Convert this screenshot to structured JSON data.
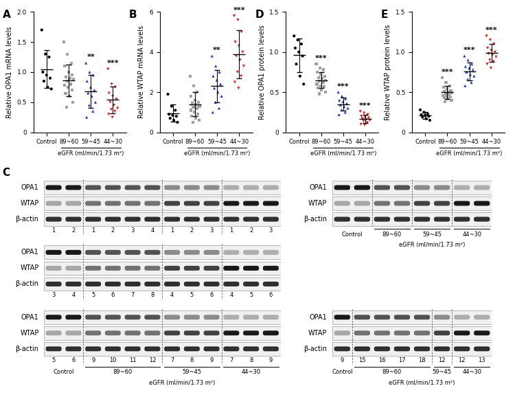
{
  "chart_data": [
    {
      "type": "scatter",
      "panel": "A",
      "y_label": "Relative OPA1 mRNA levels",
      "x_label": "eGFR (ml/min/1.73 m²)",
      "categories": [
        "Control",
        "89~60",
        "59~45",
        "44~30"
      ],
      "ylim": [
        0,
        2.0
      ],
      "yticks": [
        0,
        {
          "value": 0.5,
          "label": "0.5"
        },
        {
          "value": 1.0,
          "label": "1.0"
        },
        {
          "value": 1.5,
          "label": "1.5"
        },
        {
          "value": 2.0,
          "label": "2.0"
        }
      ],
      "groups": [
        {
          "color": "#000000",
          "marker": "circle",
          "values": [
            1.7,
            1.3,
            1.25,
            1.0,
            0.95,
            0.9,
            0.85,
            0.75,
            0.72
          ],
          "mean": 1.05,
          "sd": 0.31
        },
        {
          "color": "#a0a0a0",
          "marker": "square",
          "values": [
            1.5,
            1.3,
            1.15,
            1.1,
            1.0,
            0.95,
            0.92,
            0.9,
            0.88,
            0.85,
            0.8,
            0.78,
            0.75,
            0.7,
            0.65,
            0.6,
            0.5,
            0.42
          ],
          "mean": 0.86,
          "sd": 0.26
        },
        {
          "color": "#1f3fbf",
          "marker": "triangle_up",
          "values": [
            1.15,
            1.0,
            0.95,
            0.85,
            0.75,
            0.7,
            0.65,
            0.6,
            0.5,
            0.45,
            0.35,
            0.25
          ],
          "mean": 0.68,
          "sd": 0.27,
          "annotation": "**"
        },
        {
          "color": "#d02020",
          "marker": "triangle_down",
          "values": [
            1.05,
            0.8,
            0.75,
            0.65,
            0.6,
            0.55,
            0.5,
            0.45,
            0.4,
            0.38,
            0.35,
            0.3,
            0.25
          ],
          "mean": 0.54,
          "sd": 0.22,
          "annotation": "***"
        }
      ]
    },
    {
      "type": "scatter",
      "panel": "B",
      "y_label": "Relative WTAP mRNA levels",
      "x_label": "eGFR (ml/min/1.73 m²)",
      "categories": [
        "Control",
        "89~60",
        "59~45",
        "44~30"
      ],
      "ylim": [
        0,
        6
      ],
      "yticks": [
        0,
        2,
        4,
        6
      ],
      "groups": [
        {
          "color": "#000000",
          "marker": "circle",
          "values": [
            1.9,
            1.3,
            1.1,
            0.9,
            0.85,
            0.8,
            0.7,
            0.6,
            0.5
          ],
          "mean": 0.96,
          "sd": 0.42
        },
        {
          "color": "#a0a0a0",
          "marker": "square",
          "values": [
            2.8,
            2.3,
            2.0,
            1.8,
            1.6,
            1.5,
            1.45,
            1.4,
            1.3,
            1.25,
            1.2,
            1.1,
            1.0,
            0.9,
            0.8,
            0.7,
            0.6,
            0.5
          ],
          "mean": 1.4,
          "sd": 0.6
        },
        {
          "color": "#1f3fbf",
          "marker": "triangle_up",
          "values": [
            3.8,
            3.3,
            3.0,
            2.8,
            2.6,
            2.4,
            2.2,
            2.0,
            1.8,
            1.5,
            1.2,
            1.0
          ],
          "mean": 2.3,
          "sd": 0.8,
          "annotation": "**"
        },
        {
          "color": "#d02020",
          "marker": "triangle_down",
          "values": [
            5.8,
            5.6,
            5.0,
            4.5,
            4.3,
            4.0,
            3.8,
            3.6,
            3.3,
            3.0,
            2.8,
            2.5,
            2.2
          ],
          "mean": 3.9,
          "sd": 1.2,
          "annotation": "***"
        }
      ]
    },
    {
      "type": "scatter",
      "panel": "D",
      "y_label": "Relative OPA1 protein levels",
      "x_label": "eGFR (ml/min/1.73 m²)",
      "categories": [
        "Control",
        "89~60",
        "59~45",
        "44~30"
      ],
      "ylim": [
        0,
        1.5
      ],
      "yticks": [
        0,
        {
          "value": 0.5,
          "label": "0.5"
        },
        {
          "value": 1.0,
          "label": "1.0"
        },
        {
          "value": 1.5,
          "label": "1.5"
        }
      ],
      "groups": [
        {
          "color": "#000000",
          "marker": "circle",
          "values": [
            1.2,
            1.15,
            1.1,
            1.05,
            1.0,
            0.95,
            0.85,
            0.7,
            0.6
          ],
          "mean": 0.96,
          "sd": 0.21
        },
        {
          "color": "#a0a0a0",
          "marker": "square",
          "values": [
            0.85,
            0.8,
            0.78,
            0.75,
            0.72,
            0.7,
            0.68,
            0.67,
            0.65,
            0.64,
            0.62,
            0.6,
            0.58,
            0.57,
            0.55,
            0.53,
            0.5,
            0.48
          ],
          "mean": 0.65,
          "sd": 0.1,
          "annotation": "***"
        },
        {
          "color": "#1f3fbf",
          "marker": "triangle_up",
          "values": [
            0.5,
            0.45,
            0.42,
            0.4,
            0.38,
            0.36,
            0.34,
            0.32,
            0.3,
            0.28,
            0.25,
            0.22
          ],
          "mean": 0.35,
          "sd": 0.08,
          "annotation": "***"
        },
        {
          "color": "#d02020",
          "marker": "triangle_down",
          "values": [
            0.26,
            0.24,
            0.22,
            0.2,
            0.19,
            0.18,
            0.17,
            0.16,
            0.15,
            0.14,
            0.12,
            0.1,
            0.09
          ],
          "mean": 0.17,
          "sd": 0.05,
          "annotation": "***"
        }
      ]
    },
    {
      "type": "scatter",
      "panel": "E",
      "y_label": "Relative WTAP protein levels",
      "x_label": "eGFR (ml/min/1.73 m²)",
      "categories": [
        "Control",
        "89~60",
        "59~45",
        "44~30"
      ],
      "ylim": [
        0,
        1.5
      ],
      "yticks": [
        0,
        {
          "value": 0.5,
          "label": "0.5"
        },
        {
          "value": 1.0,
          "label": "1.0"
        },
        {
          "value": 1.5,
          "label": "1.5"
        }
      ],
      "groups": [
        {
          "color": "#000000",
          "marker": "circle",
          "values": [
            0.28,
            0.25,
            0.23,
            0.22,
            0.21,
            0.2,
            0.19,
            0.17,
            0.15
          ],
          "mean": 0.21,
          "sd": 0.04
        },
        {
          "color": "#a0a0a0",
          "marker": "square",
          "values": [
            0.68,
            0.62,
            0.58,
            0.56,
            0.54,
            0.52,
            0.51,
            0.5,
            0.49,
            0.48,
            0.47,
            0.46,
            0.45,
            0.44,
            0.43,
            0.42,
            0.4,
            0.38
          ],
          "mean": 0.5,
          "sd": 0.08,
          "annotation": "***"
        },
        {
          "color": "#1f3fbf",
          "marker": "triangle_up",
          "values": [
            0.95,
            0.9,
            0.85,
            0.82,
            0.8,
            0.78,
            0.75,
            0.72,
            0.7,
            0.66,
            0.62,
            0.58
          ],
          "mean": 0.76,
          "sd": 0.11,
          "annotation": "***"
        },
        {
          "color": "#d02020",
          "marker": "triangle_down",
          "values": [
            1.2,
            1.15,
            1.1,
            1.05,
            1.02,
            1.0,
            0.98,
            0.96,
            0.94,
            0.9,
            0.88,
            0.85,
            0.8
          ],
          "mean": 0.99,
          "sd": 0.11,
          "annotation": "***"
        }
      ]
    }
  ],
  "blots": {
    "panel": "C",
    "rows": [
      "OPA1",
      "WTAP",
      "β-actin"
    ],
    "left": [
      {
        "groups": [
          {
            "label": null,
            "lanes": [
              "1",
              "2"
            ]
          },
          {
            "label": null,
            "lanes": [
              "1",
              "2",
              "3",
              "4"
            ]
          },
          {
            "label": null,
            "lanes": [
              "1",
              "2",
              "3"
            ]
          },
          {
            "label": null,
            "lanes": [
              "1",
              "2",
              "3"
            ]
          }
        ]
      },
      {
        "groups": [
          {
            "label": null,
            "lanes": [
              "3",
              "4"
            ]
          },
          {
            "label": null,
            "lanes": [
              "5",
              "6",
              "7",
              "8"
            ]
          },
          {
            "label": null,
            "lanes": [
              "4",
              "5",
              "6"
            ]
          },
          {
            "label": null,
            "lanes": [
              "4",
              "5",
              "6"
            ]
          }
        ]
      },
      {
        "groups": [
          {
            "label": "Control",
            "lanes": [
              "5",
              "6"
            ]
          },
          {
            "label": "89~60",
            "lanes": [
              "9",
              "10",
              "11",
              "12"
            ]
          },
          {
            "label": "59~45",
            "lanes": [
              "7",
              "8",
              "9"
            ]
          },
          {
            "label": "44~30",
            "lanes": [
              "7",
              "8",
              "9"
            ]
          }
        ],
        "x_label": "eGFR (ml/min/1.73 m²)"
      }
    ],
    "right": [
      {
        "groups": [
          {
            "label": "Control",
            "lanes": [
              null,
              null
            ]
          },
          {
            "label": "89~60",
            "lanes": [
              null,
              null
            ]
          },
          {
            "label": "59~45",
            "lanes": [
              null,
              null
            ]
          },
          {
            "label": "44~30",
            "lanes": [
              null,
              null
            ]
          }
        ],
        "x_label": "eGFR (ml/min/1.73 m²)"
      },
      {
        "groups": [
          {
            "label": "Control",
            "lanes": [
              "9"
            ]
          },
          {
            "label": "89~60",
            "lanes": [
              "15",
              "16",
              "17",
              "18"
            ]
          },
          {
            "label": "59~45",
            "lanes": [
              "12"
            ]
          },
          {
            "label": "44~30",
            "lanes": [
              "12",
              "13"
            ]
          }
        ],
        "x_label": "eGFR (ml/min/1.73 m²)"
      }
    ]
  }
}
